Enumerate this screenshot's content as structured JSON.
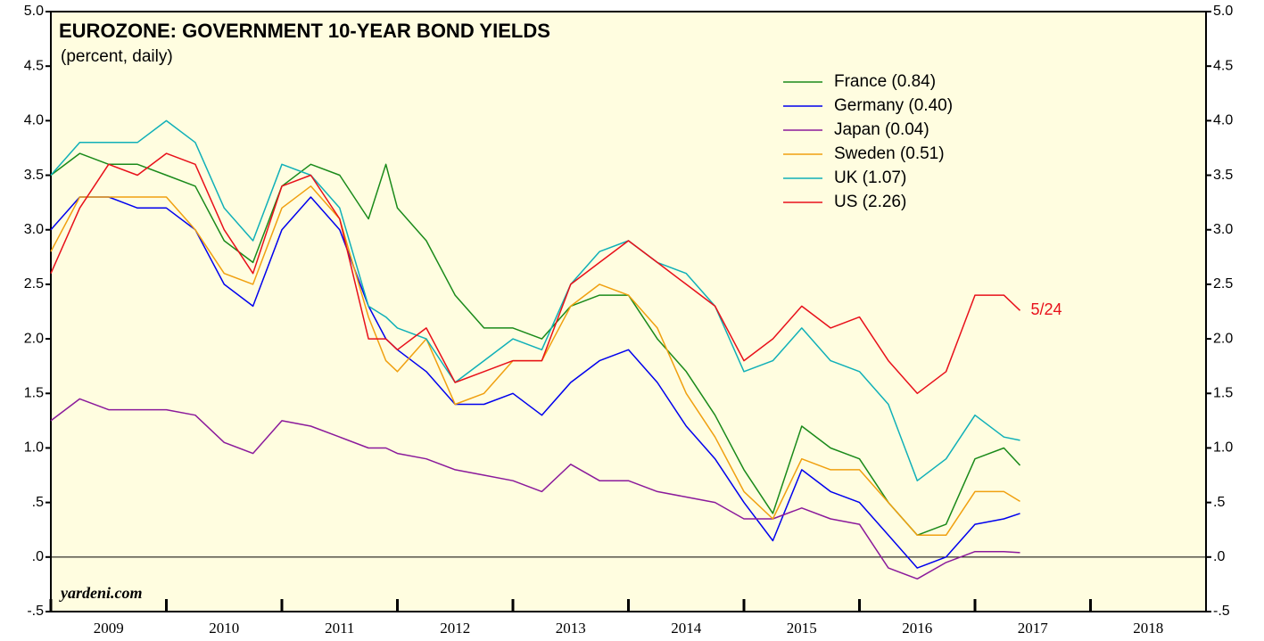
{
  "chart_data": {
    "type": "line",
    "title": "EUROZONE: GOVERNMENT 10-YEAR BOND YIELDS",
    "subtitle": "(percent, daily)",
    "annotations": [
      "5/24",
      "yardeni.com"
    ],
    "x": [
      2009.0,
      2009.25,
      2009.5,
      2009.75,
      2010.0,
      2010.25,
      2010.5,
      2010.75,
      2011.0,
      2011.25,
      2011.5,
      2011.75,
      2011.9,
      2012.0,
      2012.25,
      2012.5,
      2012.75,
      2013.0,
      2013.25,
      2013.5,
      2013.75,
      2014.0,
      2014.25,
      2014.5,
      2014.75,
      2015.0,
      2015.25,
      2015.5,
      2015.75,
      2016.0,
      2016.25,
      2016.5,
      2016.75,
      2017.0,
      2017.25,
      2017.39
    ],
    "series": [
      {
        "name": "France (0.84)",
        "color": "#1a8a1a",
        "values": [
          3.5,
          3.7,
          3.6,
          3.6,
          3.5,
          3.4,
          2.9,
          2.7,
          3.4,
          3.6,
          3.5,
          3.1,
          3.6,
          3.2,
          2.9,
          2.4,
          2.1,
          2.1,
          2.0,
          2.3,
          2.4,
          2.4,
          2.0,
          1.7,
          1.3,
          0.8,
          0.4,
          1.2,
          1.0,
          0.9,
          0.5,
          0.2,
          0.3,
          0.9,
          1.0,
          0.84
        ]
      },
      {
        "name": "Germany (0.40)",
        "color": "#0000ee",
        "values": [
          3.0,
          3.3,
          3.3,
          3.2,
          3.2,
          3.0,
          2.5,
          2.3,
          3.0,
          3.3,
          3.0,
          2.3,
          2.0,
          1.9,
          1.7,
          1.4,
          1.4,
          1.5,
          1.3,
          1.6,
          1.8,
          1.9,
          1.6,
          1.2,
          0.9,
          0.5,
          0.15,
          0.8,
          0.6,
          0.5,
          0.2,
          -0.1,
          0.0,
          0.3,
          0.35,
          0.4
        ]
      },
      {
        "name": "Japan (0.04)",
        "color": "#8b1a9b",
        "values": [
          1.25,
          1.45,
          1.35,
          1.35,
          1.35,
          1.3,
          1.05,
          0.95,
          1.25,
          1.2,
          1.1,
          1.0,
          1.0,
          0.95,
          0.9,
          0.8,
          0.75,
          0.7,
          0.6,
          0.85,
          0.7,
          0.7,
          0.6,
          0.55,
          0.5,
          0.35,
          0.35,
          0.45,
          0.35,
          0.3,
          -0.1,
          -0.2,
          -0.05,
          0.05,
          0.05,
          0.04
        ]
      },
      {
        "name": "Sweden (0.51)",
        "color": "#f0a010",
        "values": [
          2.8,
          3.3,
          3.3,
          3.3,
          3.3,
          3.0,
          2.6,
          2.5,
          3.2,
          3.4,
          3.1,
          2.2,
          1.8,
          1.7,
          2.0,
          1.4,
          1.5,
          1.8,
          1.8,
          2.3,
          2.5,
          2.4,
          2.1,
          1.5,
          1.1,
          0.6,
          0.35,
          0.9,
          0.8,
          0.8,
          0.5,
          0.2,
          0.2,
          0.6,
          0.6,
          0.51
        ]
      },
      {
        "name": "UK (1.07)",
        "color": "#10b0b8",
        "values": [
          3.5,
          3.8,
          3.8,
          3.8,
          4.0,
          3.8,
          3.2,
          2.9,
          3.6,
          3.5,
          3.2,
          2.3,
          2.2,
          2.1,
          2.0,
          1.6,
          1.8,
          2.0,
          1.9,
          2.5,
          2.8,
          2.9,
          2.7,
          2.6,
          2.3,
          1.7,
          1.8,
          2.1,
          1.8,
          1.7,
          1.4,
          0.7,
          0.9,
          1.3,
          1.1,
          1.07
        ]
      },
      {
        "name": "US (2.26)",
        "color": "#e8101a",
        "values": [
          2.6,
          3.2,
          3.6,
          3.5,
          3.7,
          3.6,
          3.0,
          2.6,
          3.4,
          3.5,
          3.1,
          2.0,
          2.0,
          1.9,
          2.1,
          1.6,
          1.7,
          1.8,
          1.8,
          2.5,
          2.7,
          2.9,
          2.7,
          2.5,
          2.3,
          1.8,
          2.0,
          2.3,
          2.1,
          2.2,
          1.8,
          1.5,
          1.7,
          2.4,
          2.4,
          2.26
        ]
      }
    ],
    "xlim": [
      2009,
      2019
    ],
    "xticks": [
      {
        "value": 2009,
        "label": "2009"
      },
      {
        "value": 2010,
        "label": "2010"
      },
      {
        "value": 2011,
        "label": "2011"
      },
      {
        "value": 2012,
        "label": "2012"
      },
      {
        "value": 2013,
        "label": "2013"
      },
      {
        "value": 2014,
        "label": "2014"
      },
      {
        "value": 2015,
        "label": "2015"
      },
      {
        "value": 2016,
        "label": "2016"
      },
      {
        "value": 2017,
        "label": "2017"
      },
      {
        "value": 2018,
        "label": "2018"
      }
    ],
    "ylim": [
      -0.5,
      5.0
    ],
    "yticks": [
      {
        "value": 5.0,
        "label": "5.0"
      },
      {
        "value": 4.5,
        "label": "4.5"
      },
      {
        "value": 4.0,
        "label": "4.0"
      },
      {
        "value": 3.5,
        "label": "3.5"
      },
      {
        "value": 3.0,
        "label": "3.0"
      },
      {
        "value": 2.5,
        "label": "2.5"
      },
      {
        "value": 2.0,
        "label": "2.0"
      },
      {
        "value": 1.5,
        "label": "1.5"
      },
      {
        "value": 1.0,
        "label": "1.0"
      },
      {
        "value": 0.5,
        "label": ".5"
      },
      {
        "value": 0,
        "label": ".0"
      },
      {
        "value": -0.5,
        "label": "-.5"
      }
    ]
  }
}
